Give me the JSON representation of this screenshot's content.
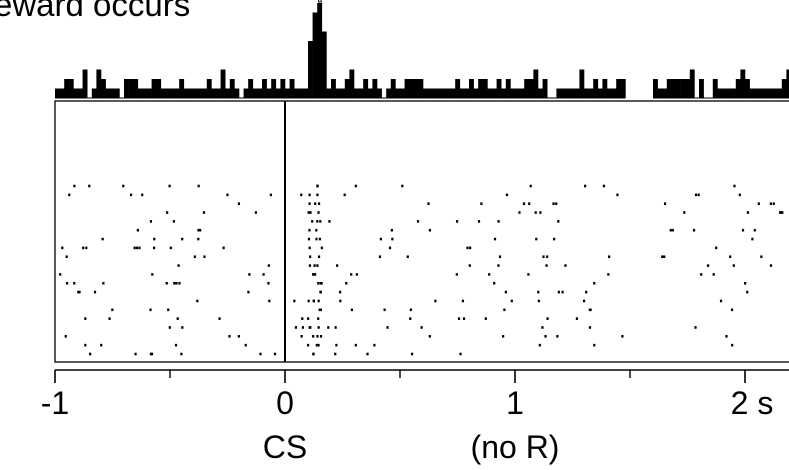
{
  "title": "eward occurs",
  "chart_data": {
    "type": "raster",
    "panels": [
      "histogram",
      "raster"
    ],
    "x_unit": "s",
    "xlim": [
      -1,
      2.2
    ],
    "x_ticks": [
      -1,
      0,
      1,
      2
    ],
    "x_tick_labels": [
      "-1",
      "0",
      "1",
      "2 s"
    ],
    "x_minor_ticks": [
      -0.5,
      0.5,
      1.5
    ],
    "event_line_x": 0,
    "event_labels": [
      {
        "x": 0,
        "text": "CS"
      },
      {
        "x": 1,
        "text": "(no R)"
      }
    ],
    "gap_interval": [
      1.48,
      1.6
    ],
    "histogram": {
      "bin_width_s": 0.02,
      "peak": {
        "start": 0.1,
        "end": 0.18,
        "values": [
          6,
          9,
          10,
          7
        ]
      },
      "baseline_range": [
        0,
        3
      ],
      "dominant_level": 1
    },
    "raster": {
      "n_trials": 20,
      "burst_window_s": [
        0.1,
        0.16
      ]
    }
  }
}
